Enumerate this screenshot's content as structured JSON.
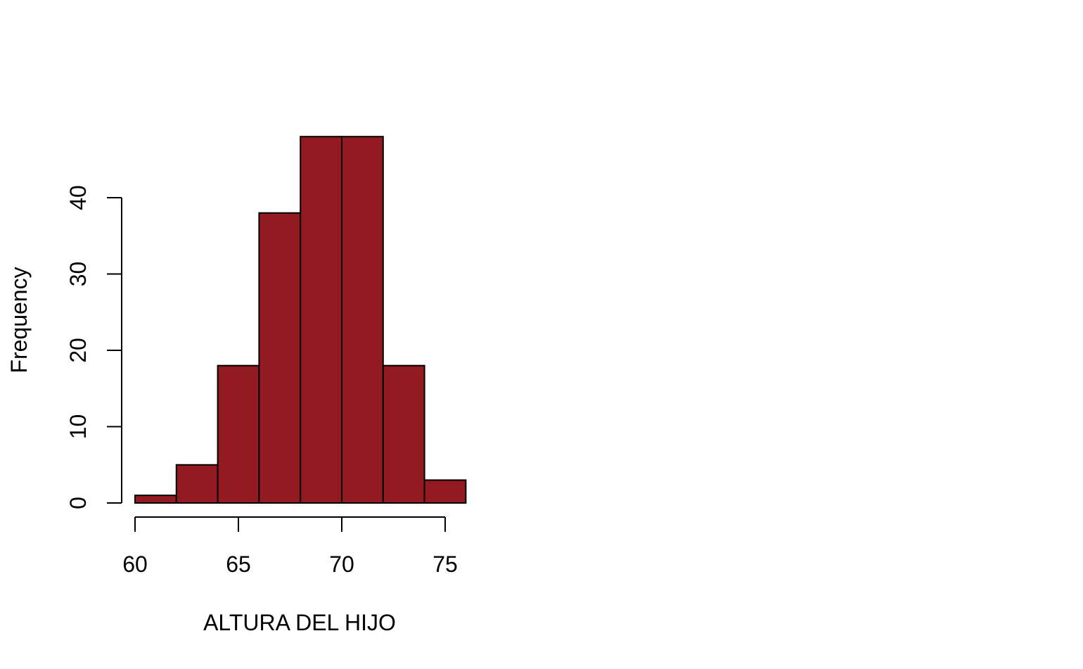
{
  "chart_data": {
    "type": "bar",
    "title": "",
    "xlabel": "ALTURA DEL HIJO",
    "ylabel": "Frequency",
    "bins": [
      {
        "from": 60,
        "to": 62,
        "count": 1
      },
      {
        "from": 62,
        "to": 64,
        "count": 5
      },
      {
        "from": 64,
        "to": 66,
        "count": 18
      },
      {
        "from": 66,
        "to": 68,
        "count": 38
      },
      {
        "from": 68,
        "to": 70,
        "count": 48
      },
      {
        "from": 70,
        "to": 72,
        "count": 48
      },
      {
        "from": 72,
        "to": 74,
        "count": 18
      },
      {
        "from": 74,
        "to": 76,
        "count": 3
      }
    ],
    "x_ticks": [
      60,
      65,
      70,
      75
    ],
    "y_ticks": [
      0,
      10,
      20,
      30,
      40
    ],
    "xlim": [
      60,
      76
    ],
    "ylim": [
      0,
      48
    ],
    "grid": false,
    "colors": {
      "bar_fill": "#931A20",
      "bar_border": "#000000"
    }
  }
}
